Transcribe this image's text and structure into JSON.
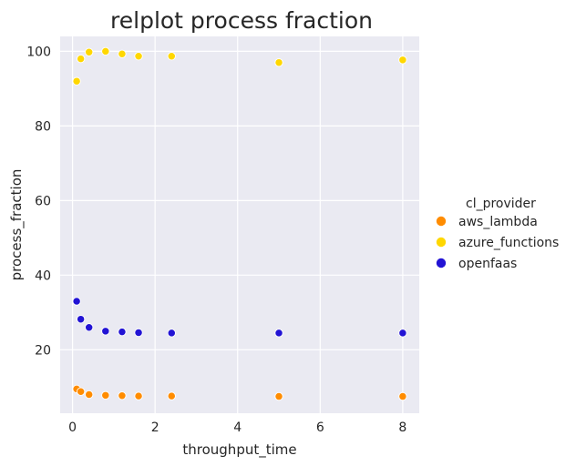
{
  "chart_data": {
    "type": "scatter",
    "title": "relplot process fraction",
    "xlabel": "throughput_time",
    "ylabel": "process_fraction",
    "xlim": [
      -0.3,
      8.4
    ],
    "ylim": [
      3,
      104
    ],
    "xticks": [
      0,
      2,
      4,
      6,
      8
    ],
    "yticks": [
      20,
      40,
      60,
      80,
      100
    ],
    "grid": true,
    "legend_title": "cl_provider",
    "legend_position": "right",
    "series": [
      {
        "name": "aws_lambda",
        "color": "#ff8c00",
        "points": [
          {
            "x": 0.1,
            "y": 9.5
          },
          {
            "x": 0.2,
            "y": 8.8
          },
          {
            "x": 0.4,
            "y": 8.0
          },
          {
            "x": 0.8,
            "y": 7.8
          },
          {
            "x": 1.2,
            "y": 7.7
          },
          {
            "x": 1.6,
            "y": 7.6
          },
          {
            "x": 2.4,
            "y": 7.6
          },
          {
            "x": 5.0,
            "y": 7.5
          },
          {
            "x": 8.0,
            "y": 7.5
          }
        ]
      },
      {
        "name": "azure_functions",
        "color": "#ffd700",
        "points": [
          {
            "x": 0.1,
            "y": 92.0
          },
          {
            "x": 0.2,
            "y": 98.0
          },
          {
            "x": 0.4,
            "y": 99.8
          },
          {
            "x": 0.8,
            "y": 100.0
          },
          {
            "x": 1.2,
            "y": 99.3
          },
          {
            "x": 1.6,
            "y": 98.7
          },
          {
            "x": 2.4,
            "y": 98.7
          },
          {
            "x": 5.0,
            "y": 97.0
          },
          {
            "x": 8.0,
            "y": 97.7
          }
        ]
      },
      {
        "name": "openfaas",
        "color": "#2213d4",
        "points": [
          {
            "x": 0.1,
            "y": 33.0
          },
          {
            "x": 0.2,
            "y": 28.2
          },
          {
            "x": 0.4,
            "y": 26.0
          },
          {
            "x": 0.8,
            "y": 25.0
          },
          {
            "x": 1.2,
            "y": 24.8
          },
          {
            "x": 1.6,
            "y": 24.6
          },
          {
            "x": 2.4,
            "y": 24.5
          },
          {
            "x": 5.0,
            "y": 24.5
          },
          {
            "x": 8.0,
            "y": 24.5
          }
        ]
      }
    ]
  }
}
